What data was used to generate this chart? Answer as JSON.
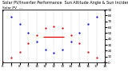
{
  "title": "Solar PV/Inverter Performance  Sun Altitude Angle & Sun Incidence Angle on PV Panels",
  "subtitle": "Solar PV  ---",
  "x_values": [
    6,
    7,
    8,
    9,
    10,
    11,
    12,
    13,
    14,
    15,
    16,
    17,
    18
  ],
  "sun_altitude": [
    2,
    8,
    18,
    33,
    47,
    58,
    62,
    58,
    47,
    33,
    18,
    8,
    2
  ],
  "sun_incidence": [
    88,
    78,
    65,
    50,
    36,
    22,
    16,
    22,
    36,
    50,
    65,
    78,
    88
  ],
  "hline_y": 43,
  "hline_xmin": 10.8,
  "hline_xmax": 13.2,
  "blue_color": "#0000dd",
  "red_color": "#dd0000",
  "bg_color": "#ffffff",
  "grid_color": "#bbbbbb",
  "y_right_ticks": [
    0,
    10,
    20,
    30,
    40,
    50,
    60,
    70,
    80,
    90
  ],
  "ylim": [
    0,
    90
  ],
  "xlim": [
    6,
    18
  ],
  "x_tick_labels": [
    "6",
    "7",
    "8",
    "9",
    "10",
    "11",
    "12",
    "13",
    "14",
    "15",
    "16",
    "17",
    "18"
  ],
  "title_fontsize": 3.5,
  "subtitle_fontsize": 3.2,
  "tick_fontsize": 3.0
}
